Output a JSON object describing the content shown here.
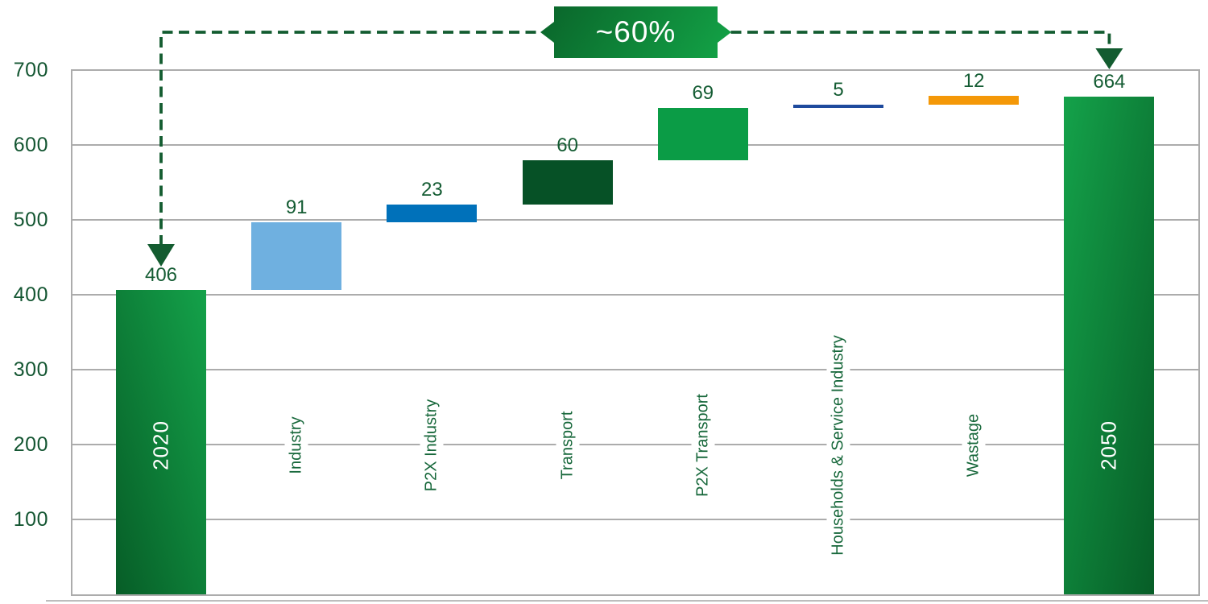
{
  "chart_data": {
    "type": "bar",
    "subtype": "waterfall",
    "title": "",
    "xlabel": "",
    "ylabel": "",
    "ylim": [
      0,
      700
    ],
    "grid": true,
    "y_axis_ticks": [
      "700",
      "600",
      "500",
      "400",
      "300",
      "200",
      "100"
    ],
    "bars": [
      {
        "label": "2020",
        "value": 406,
        "value_label": "406",
        "start": 0,
        "end": 406,
        "kind": "total",
        "color": "green-gradient"
      },
      {
        "label": "Industry",
        "value": 91,
        "value_label": "91",
        "start": 406,
        "end": 497,
        "kind": "delta",
        "color": "#6fb0e0"
      },
      {
        "label": "P2X Industry",
        "value": 23,
        "value_label": "23",
        "start": 497,
        "end": 520,
        "kind": "delta",
        "color": "#0071ba"
      },
      {
        "label": "Transport",
        "value": 60,
        "value_label": "60",
        "start": 520,
        "end": 580,
        "kind": "delta",
        "color": "#065126"
      },
      {
        "label": "P2X Transport",
        "value": 69,
        "value_label": "69",
        "start": 580,
        "end": 649,
        "kind": "delta",
        "color": "#0b9c46"
      },
      {
        "label": "Households & Service Industry",
        "value": 5,
        "value_label": "5",
        "start": 649,
        "end": 654,
        "kind": "delta",
        "color": "#1e4a9d"
      },
      {
        "label": "Wastage",
        "value": 12,
        "value_label": "12",
        "start": 654,
        "end": 666,
        "kind": "delta",
        "color": "#f49808"
      },
      {
        "label": "2050",
        "value": 664,
        "value_label": "664",
        "start": 0,
        "end": 664,
        "kind": "total",
        "color": "green-gradient"
      }
    ],
    "annotation": {
      "label": "~60%",
      "from_bar": "2020",
      "to_bar": "2050",
      "style": "dashed-arrows-with-badge"
    },
    "colors": {
      "total_gradient_from": "#075d27",
      "total_gradient_to": "#14a24a",
      "tick_text_green": "#145632",
      "value_text_green": "#145c33",
      "category_text_green": "#16673a",
      "arrow_green": "#135c30",
      "gridline_gray": "#acacac",
      "badge_text": "#ffffff"
    }
  }
}
